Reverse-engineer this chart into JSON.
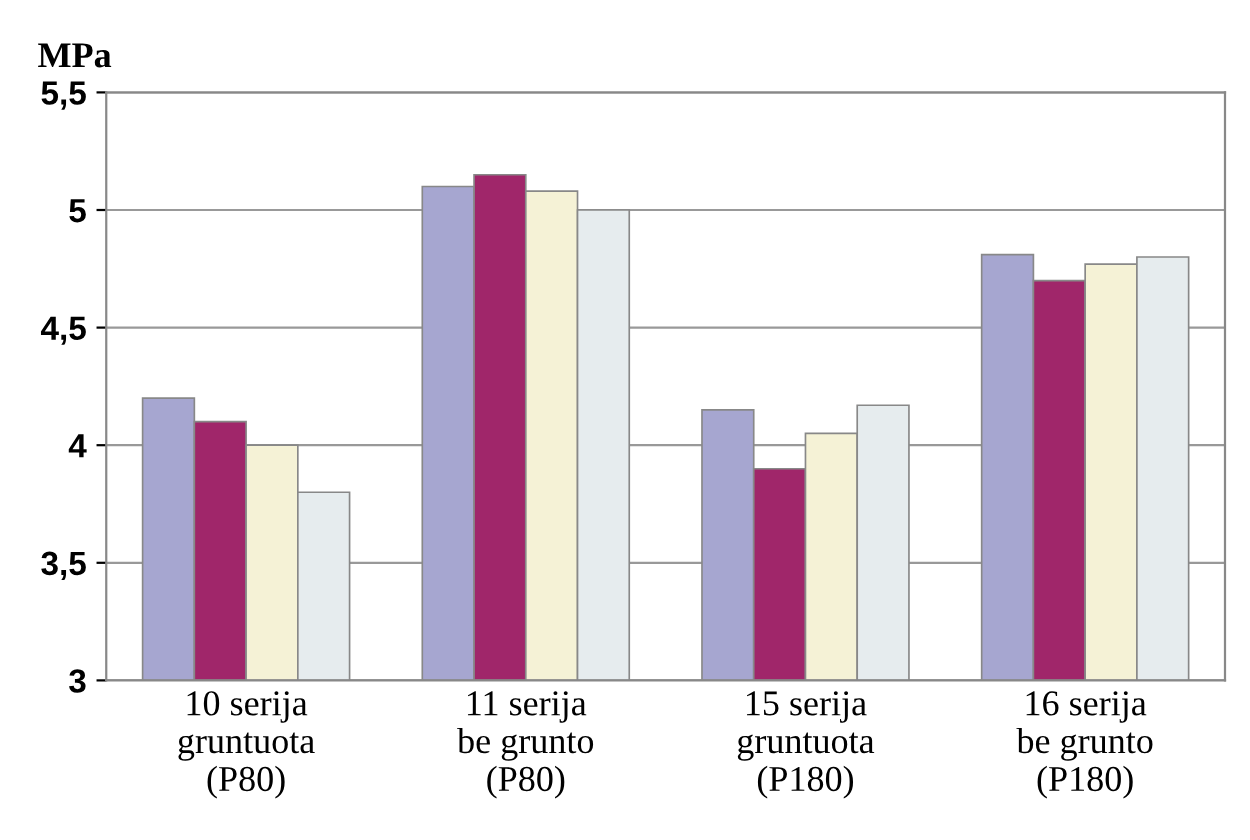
{
  "chart_data": {
    "type": "bar",
    "ylabel": "MPa",
    "categories": [
      "10 serija\ngruntuota\n(P80)",
      "11 serija\nbe grunto\n(P80)",
      "15 serija\ngruntuota\n(P180)",
      "16 serija\nbe grunto\n(P180)"
    ],
    "series": [
      {
        "color": "#a6a6d0",
        "values": [
          4.2,
          5.1,
          4.15,
          4.81
        ]
      },
      {
        "color": "#a0266a",
        "values": [
          4.1,
          5.15,
          3.9,
          4.7
        ]
      },
      {
        "color": "#f5f2d6",
        "values": [
          4.0,
          5.08,
          4.05,
          4.77
        ]
      },
      {
        "color": "#e6ecee",
        "values": [
          3.8,
          5.0,
          4.17,
          4.8
        ]
      }
    ],
    "ylim": [
      3,
      5.5
    ],
    "yticks": [
      {
        "value": 3,
        "label": "3"
      },
      {
        "value": 3.5,
        "label": "3,5"
      },
      {
        "value": 4,
        "label": "4"
      },
      {
        "value": 4.5,
        "label": "4,5"
      },
      {
        "value": 5,
        "label": "5"
      },
      {
        "value": 5.5,
        "label": "5,5"
      }
    ],
    "grid": "y"
  }
}
